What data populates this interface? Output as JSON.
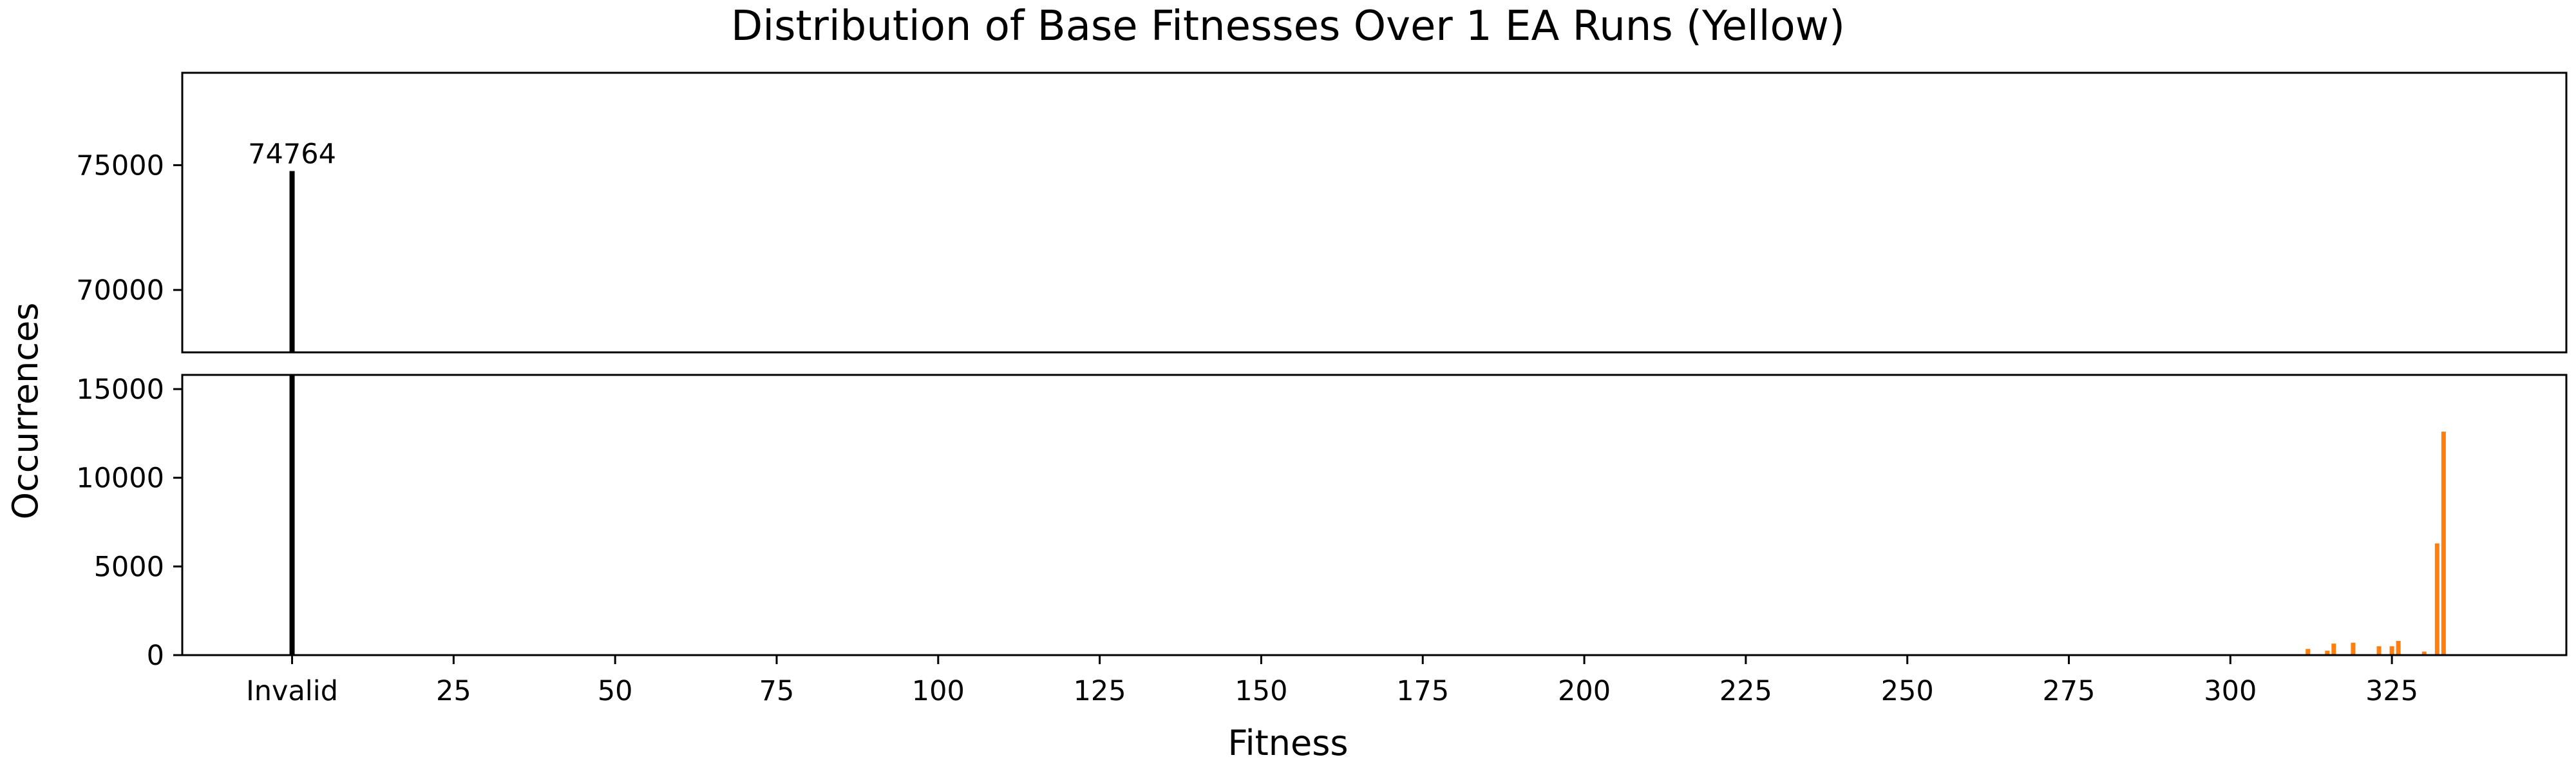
{
  "chart_data": {
    "type": "bar",
    "title": "Distribution of Base Fitnesses Over 1 EA Runs (Yellow)",
    "xlabel": "Fitness",
    "ylabel": "Occurrences",
    "layout": "broken y-axis (two stacked panels)",
    "x_ticks": [
      "Invalid",
      "25",
      "50",
      "75",
      "100",
      "125",
      "150",
      "175",
      "200",
      "225",
      "250",
      "275",
      "300",
      "325"
    ],
    "xlim": [
      -17,
      352
    ],
    "upper_panel": {
      "ylim": [
        67500,
        78700
      ],
      "yticks": [
        "70000",
        "75000"
      ]
    },
    "lower_panel": {
      "ylim": [
        0,
        15800
      ],
      "yticks": [
        "0",
        "5000",
        "10000",
        "15000"
      ]
    },
    "invalid_bar": {
      "category": "Invalid",
      "value": 74764,
      "label": "74764",
      "color": "#000000"
    },
    "series": [
      {
        "color": "#ff7f0e",
        "x": [
          312,
          315,
          316,
          319,
          323,
          325,
          326,
          330,
          332,
          333
        ],
        "values": [
          350,
          250,
          650,
          700,
          500,
          500,
          800,
          200,
          6300,
          12600
        ]
      }
    ],
    "grid": false,
    "colors": {
      "invalid": "#000000",
      "valid": "#ff7f0e"
    }
  }
}
